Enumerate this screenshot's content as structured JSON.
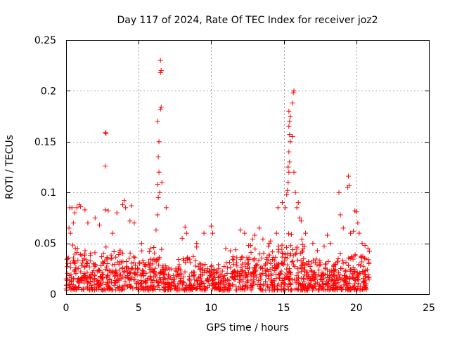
{
  "chart_data": {
    "type": "scatter",
    "title": "Day 117 of 2024, Rate Of TEC Index for receiver joz2",
    "xlabel": "GPS time / hours",
    "ylabel": "ROTI / TECUs",
    "xlim": [
      0,
      25
    ],
    "ylim": [
      0,
      0.25
    ],
    "xticks": [
      0,
      5,
      10,
      15,
      20,
      25
    ],
    "yticks": [
      0,
      0.05,
      0.1,
      0.15,
      0.2,
      0.25
    ],
    "xtick_labels": [
      "0",
      "5",
      "10",
      "15",
      "20",
      "25"
    ],
    "ytick_labels": [
      "0",
      "0.05",
      "0.1",
      "0.15",
      "0.2",
      "0.25"
    ],
    "grid": true,
    "marker": "+",
    "color": "#ff0000",
    "series": [
      {
        "name": "ROTI",
        "points": [
          [
            0.1,
            0.035
          ],
          [
            0.2,
            0.065
          ],
          [
            0.25,
            0.085
          ],
          [
            0.3,
            0.06
          ],
          [
            0.4,
            0.085
          ],
          [
            0.5,
            0.07
          ],
          [
            0.6,
            0.08
          ],
          [
            0.75,
            0.085
          ],
          [
            0.9,
            0.088
          ],
          [
            1.0,
            0.086
          ],
          [
            1.3,
            0.083
          ],
          [
            1.5,
            0.07
          ],
          [
            2.0,
            0.075
          ],
          [
            2.3,
            0.068
          ],
          [
            2.7,
            0.159
          ],
          [
            2.75,
            0.158
          ],
          [
            2.7,
            0.126
          ],
          [
            2.7,
            0.083
          ],
          [
            2.9,
            0.082
          ],
          [
            3.2,
            0.06
          ],
          [
            3.5,
            0.08
          ],
          [
            3.9,
            0.088
          ],
          [
            4.0,
            0.092
          ],
          [
            4.1,
            0.085
          ],
          [
            4.4,
            0.072
          ],
          [
            4.5,
            0.087
          ],
          [
            4.7,
            0.07
          ],
          [
            5.2,
            0.05
          ],
          [
            5.8,
            0.045
          ],
          [
            6.2,
            0.063
          ],
          [
            6.3,
            0.078
          ],
          [
            6.35,
            0.095
          ],
          [
            6.3,
            0.108
          ],
          [
            6.4,
            0.12
          ],
          [
            6.35,
            0.135
          ],
          [
            6.4,
            0.15
          ],
          [
            6.3,
            0.17
          ],
          [
            6.5,
            0.182
          ],
          [
            6.55,
            0.184
          ],
          [
            6.5,
            0.218
          ],
          [
            6.55,
            0.22
          ],
          [
            6.5,
            0.23
          ],
          [
            6.45,
            0.1
          ],
          [
            6.6,
            0.11
          ],
          [
            6.9,
            0.085
          ],
          [
            8.0,
            0.055
          ],
          [
            8.2,
            0.066
          ],
          [
            8.3,
            0.06
          ],
          [
            9.0,
            0.05
          ],
          [
            9.5,
            0.06
          ],
          [
            10.0,
            0.067
          ],
          [
            10.1,
            0.06
          ],
          [
            11.0,
            0.045
          ],
          [
            12.0,
            0.063
          ],
          [
            12.3,
            0.06
          ],
          [
            13.0,
            0.058
          ],
          [
            13.3,
            0.065
          ],
          [
            14.0,
            0.05
          ],
          [
            14.5,
            0.06
          ],
          [
            14.6,
            0.085
          ],
          [
            14.9,
            0.09
          ],
          [
            15.1,
            0.085
          ],
          [
            15.2,
            0.098
          ],
          [
            15.25,
            0.102
          ],
          [
            15.3,
            0.11
          ],
          [
            15.35,
            0.12
          ],
          [
            15.3,
            0.125
          ],
          [
            15.4,
            0.13
          ],
          [
            15.35,
            0.14
          ],
          [
            15.45,
            0.15
          ],
          [
            15.4,
            0.157
          ],
          [
            15.35,
            0.165
          ],
          [
            15.4,
            0.17
          ],
          [
            15.35,
            0.18
          ],
          [
            15.45,
            0.175
          ],
          [
            15.6,
            0.188
          ],
          [
            15.65,
            0.198
          ],
          [
            15.7,
            0.2
          ],
          [
            15.6,
            0.155
          ],
          [
            15.7,
            0.12
          ],
          [
            15.8,
            0.1
          ],
          [
            15.9,
            0.085
          ],
          [
            16.0,
            0.09
          ],
          [
            16.1,
            0.075
          ],
          [
            16.2,
            0.072
          ],
          [
            16.5,
            0.06
          ],
          [
            17.0,
            0.05
          ],
          [
            18.0,
            0.058
          ],
          [
            18.2,
            0.05
          ],
          [
            18.8,
            0.1
          ],
          [
            18.9,
            0.078
          ],
          [
            19.1,
            0.065
          ],
          [
            19.4,
            0.105
          ],
          [
            19.45,
            0.116
          ],
          [
            19.5,
            0.107
          ],
          [
            19.6,
            0.06
          ],
          [
            19.8,
            0.062
          ],
          [
            19.9,
            0.082
          ],
          [
            20.0,
            0.081
          ],
          [
            20.1,
            0.07
          ],
          [
            20.2,
            0.06
          ],
          [
            20.4,
            0.05
          ],
          [
            20.6,
            0.048
          ],
          [
            20.8,
            0.045
          ],
          [
            20.9,
            0.042
          ]
        ],
        "envelope": {
          "x_start": 0.0,
          "x_end": 20.9,
          "baseline_min": 0.004,
          "dense_upper": [
            [
              0,
              0.035
            ],
            [
              1,
              0.045
            ],
            [
              2,
              0.035
            ],
            [
              3,
              0.04
            ],
            [
              4,
              0.045
            ],
            [
              5,
              0.035
            ],
            [
              6,
              0.04
            ],
            [
              7,
              0.03
            ],
            [
              8,
              0.04
            ],
            [
              9,
              0.035
            ],
            [
              10,
              0.03
            ],
            [
              11,
              0.03
            ],
            [
              12,
              0.04
            ],
            [
              13,
              0.045
            ],
            [
              14,
              0.04
            ],
            [
              15,
              0.05
            ],
            [
              16,
              0.05
            ],
            [
              17,
              0.035
            ],
            [
              18,
              0.035
            ],
            [
              19,
              0.035
            ],
            [
              20,
              0.04
            ],
            [
              20.9,
              0.035
            ]
          ]
        }
      }
    ]
  }
}
